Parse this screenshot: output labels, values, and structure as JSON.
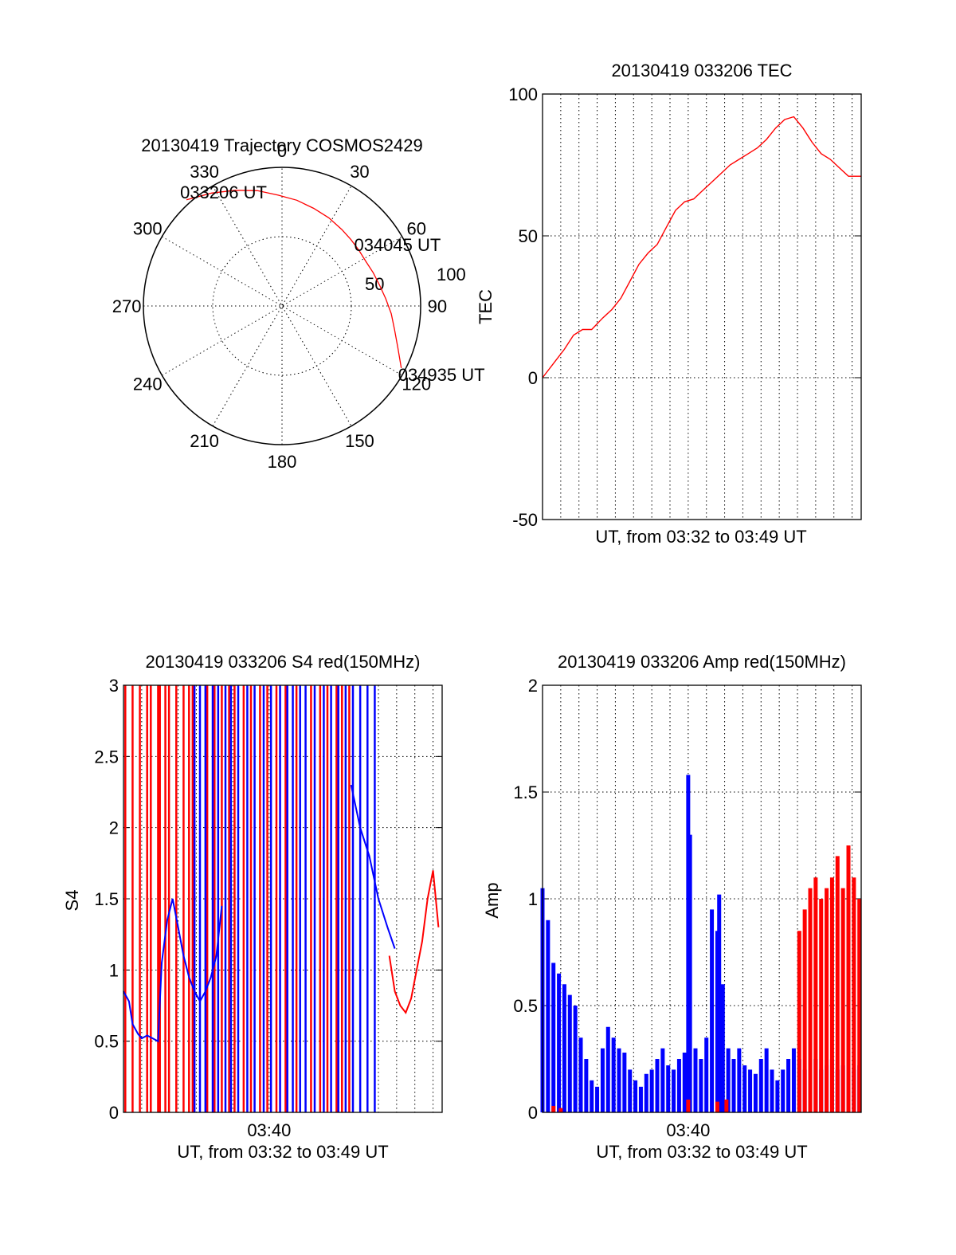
{
  "chart_data": [
    {
      "type": "polar",
      "title": "20130419 Trajectory COSMOS2429",
      "angle_labels": [
        "0",
        "30",
        "60",
        "90",
        "120",
        "150",
        "180",
        "210",
        "240",
        "270",
        "300",
        "330"
      ],
      "radial_labels": [
        "50",
        "100"
      ],
      "series_color": "#ff0000",
      "trajectory": {
        "azimuth_deg": [
          318,
          328,
          338,
          348,
          358,
          8,
          18,
          28,
          38,
          46,
          54,
          62,
          70,
          78,
          86,
          94,
          102,
          110,
          117.5
        ],
        "zenith_dist": [
          103,
          96,
          90,
          85,
          80,
          77,
          74,
          72,
          70,
          69,
          68.5,
          68.5,
          70,
          72,
          75,
          79,
          83,
          89,
          97
        ]
      },
      "annotations": [
        {
          "text": "033206 UT",
          "azimuth_deg": 318,
          "zenith_dist": 103
        },
        {
          "text": "034045 UT",
          "azimuth_deg": 60,
          "zenith_dist": 68
        },
        {
          "text": "034935 UT",
          "azimuth_deg": 117.5,
          "zenith_dist": 97
        }
      ]
    },
    {
      "type": "line",
      "title": "20130419 033206 TEC",
      "xlabel": "UT, from 03:32 to 03:49 UT",
      "ylabel": "TEC",
      "ylim": [
        -50,
        100
      ],
      "yticks": [
        "-50",
        "0",
        "50",
        "100"
      ],
      "xlim_minutes": [
        0,
        17.5
      ],
      "grid": true,
      "series": [
        {
          "color": "#ff0000",
          "x_minutes": [
            0,
            0.6,
            1.2,
            1.7,
            2.2,
            2.7,
            3.3,
            3.8,
            4.3,
            4.8,
            5.3,
            5.8,
            6.3,
            6.8,
            7.3,
            7.8,
            8.3,
            8.8,
            9.3,
            9.8,
            10.3,
            10.8,
            11.3,
            11.8,
            12.3,
            12.8,
            13.3,
            13.8,
            14.3,
            14.8,
            15.3,
            15.8,
            16.3,
            16.8,
            17.3,
            17.5
          ],
          "y": [
            0,
            5,
            10,
            15,
            17,
            17,
            21,
            24,
            28,
            34,
            40,
            44,
            47,
            53,
            59,
            62,
            63,
            66,
            69,
            72,
            75,
            77,
            79,
            81,
            84,
            88,
            91,
            92,
            88,
            83,
            79,
            77,
            74,
            71,
            71,
            71
          ]
        }
      ]
    },
    {
      "type": "line",
      "title": "20130419 033206 S4 red(150MHz)",
      "xlabel": "UT, from 03:32 to 03:49 UT",
      "ylabel": "S4",
      "ylim": [
        0,
        3
      ],
      "yticks": [
        "0",
        "0.5",
        "1",
        "1.5",
        "2",
        "2.5",
        "3"
      ],
      "xticks": [
        "03:40"
      ],
      "xlim_minutes": [
        0,
        17.5
      ],
      "grid": true,
      "series": [
        {
          "color": "#ff0000",
          "x_minutes": [
            0.1,
            0.5,
            0.9,
            1.3,
            1.5,
            1.9,
            2.0,
            2.3,
            2.5,
            2.9,
            3.3,
            3.6,
            3.8,
            4.6,
            5.0,
            5.4,
            5.8,
            6.1,
            6.6,
            7.0,
            7.5,
            7.9,
            8.4,
            8.9,
            9.5,
            10.3,
            10.8,
            11.2,
            11.7,
            12.0,
            12.4
          ],
          "y": [
            3,
            3,
            3,
            3,
            3,
            3,
            3,
            3,
            3,
            3,
            3,
            3,
            3,
            3,
            3,
            3,
            3,
            3,
            3,
            3,
            3,
            3,
            3,
            3,
            3,
            3,
            3,
            3,
            3,
            3,
            3
          ]
        },
        {
          "color": "#0000ff",
          "x_minutes": [
            3.9,
            4.2,
            4.5,
            4.9,
            5.2,
            5.6,
            5.9,
            6.3,
            6.8,
            7.2,
            7.7,
            8.1,
            8.6,
            9.0,
            9.3,
            9.7,
            10.0,
            10.5,
            11.0,
            11.4,
            11.8,
            12.2,
            12.6,
            13.0,
            13.4,
            13.8
          ],
          "y": [
            3,
            3,
            3,
            3,
            3,
            3,
            3,
            3,
            3,
            3,
            3,
            3,
            3,
            3,
            3,
            3,
            3,
            3,
            3,
            3,
            3,
            3,
            3,
            3,
            3,
            3
          ]
        },
        {
          "color": "#0000ff",
          "x_minutes": [
            0,
            0.3,
            0.5,
            0.8,
            1.0,
            1.3,
            1.6,
            1.9,
            2.1,
            2.4,
            2.7,
            3.0,
            3.3,
            3.6,
            3.9,
            4.2,
            4.5,
            4.8,
            5.1,
            5.4
          ],
          "y": [
            0.85,
            0.78,
            0.62,
            0.55,
            0.52,
            0.54,
            0.52,
            0.5,
            1.05,
            1.35,
            1.5,
            1.3,
            1.1,
            0.95,
            0.85,
            0.78,
            0.85,
            0.95,
            1.1,
            1.45
          ]
        },
        {
          "color": "#0000ff",
          "x_minutes": [
            12.5,
            13.0,
            13.5,
            14.0,
            14.5,
            14.9
          ],
          "y": [
            2.3,
            2.0,
            1.8,
            1.5,
            1.3,
            1.15
          ]
        },
        {
          "color": "#ff0000",
          "x_minutes": [
            14.6,
            14.9,
            15.2,
            15.5,
            15.8,
            16.1,
            16.4,
            16.7,
            17.0,
            17.3
          ],
          "y": [
            1.1,
            0.85,
            0.75,
            0.7,
            0.8,
            1.0,
            1.2,
            1.5,
            1.7,
            1.3
          ]
        }
      ]
    },
    {
      "type": "bar",
      "title": "20130419 033206 Amp red(150MHz)",
      "xlabel": "UT, from 03:32 to 03:49 UT",
      "ylabel": "Amp",
      "ylim": [
        0,
        2
      ],
      "yticks": [
        "0",
        "0.5",
        "1",
        "1.5",
        "2"
      ],
      "xticks": [
        "03:40"
      ],
      "xlim_minutes": [
        0,
        17.5
      ],
      "grid": true,
      "series": [
        {
          "color": "#0000ff",
          "x_minutes": [
            0,
            0.3,
            0.6,
            0.9,
            1.2,
            1.5,
            1.8,
            2.1,
            2.4,
            2.7,
            3.0,
            3.3,
            3.6,
            3.9,
            4.2,
            4.5,
            4.8,
            5.1,
            5.4,
            5.7,
            6.0,
            6.3,
            6.6,
            6.9,
            7.2,
            7.5,
            7.8,
            8.0,
            8.1,
            8.4,
            8.7,
            9.0,
            9.3,
            9.6,
            9.7,
            9.9,
            10.2,
            10.5,
            10.8,
            11.1,
            11.4,
            11.7,
            12.0,
            12.3,
            12.6,
            12.9,
            13.2,
            13.5,
            13.8,
            14.1,
            14.4,
            14.7,
            15.0,
            15.3,
            15.6,
            15.9,
            16.2,
            16.5,
            16.8,
            17.1,
            17.4
          ],
          "values": [
            1.05,
            0.9,
            0.7,
            0.65,
            0.6,
            0.55,
            0.5,
            0.35,
            0.25,
            0.15,
            0.12,
            0.3,
            0.4,
            0.35,
            0.3,
            0.28,
            0.2,
            0.15,
            0.12,
            0.18,
            0.2,
            0.25,
            0.3,
            0.22,
            0.2,
            0.25,
            0.28,
            1.58,
            1.3,
            0.3,
            0.25,
            0.35,
            0.95,
            0.85,
            1.02,
            0.6,
            0.3,
            0.25,
            0.3,
            0.22,
            0.2,
            0.18,
            0.25,
            0.3,
            0.2,
            0.15,
            0.2,
            0.25,
            0.3,
            0.25,
            0.2,
            0.22,
            0.25,
            0.2,
            0.22,
            0.25,
            0.2,
            0.22,
            0.25,
            0.2,
            0.22
          ]
        },
        {
          "color": "#ff0000",
          "x_minutes": [
            14.1,
            14.4,
            14.7,
            15.0,
            15.3,
            15.6,
            15.9,
            16.2,
            16.5,
            16.8,
            17.1,
            17.4
          ],
          "values": [
            0.85,
            0.95,
            1.05,
            1.1,
            1.0,
            1.05,
            1.1,
            1.2,
            1.05,
            1.25,
            1.1,
            1.0
          ]
        },
        {
          "color": "#ff0000",
          "x_minutes": [
            0.6,
            1.0,
            8.0,
            9.6,
            10.1
          ],
          "values": [
            0.03,
            0.02,
            0.06,
            0.05,
            0.06
          ]
        }
      ]
    }
  ]
}
